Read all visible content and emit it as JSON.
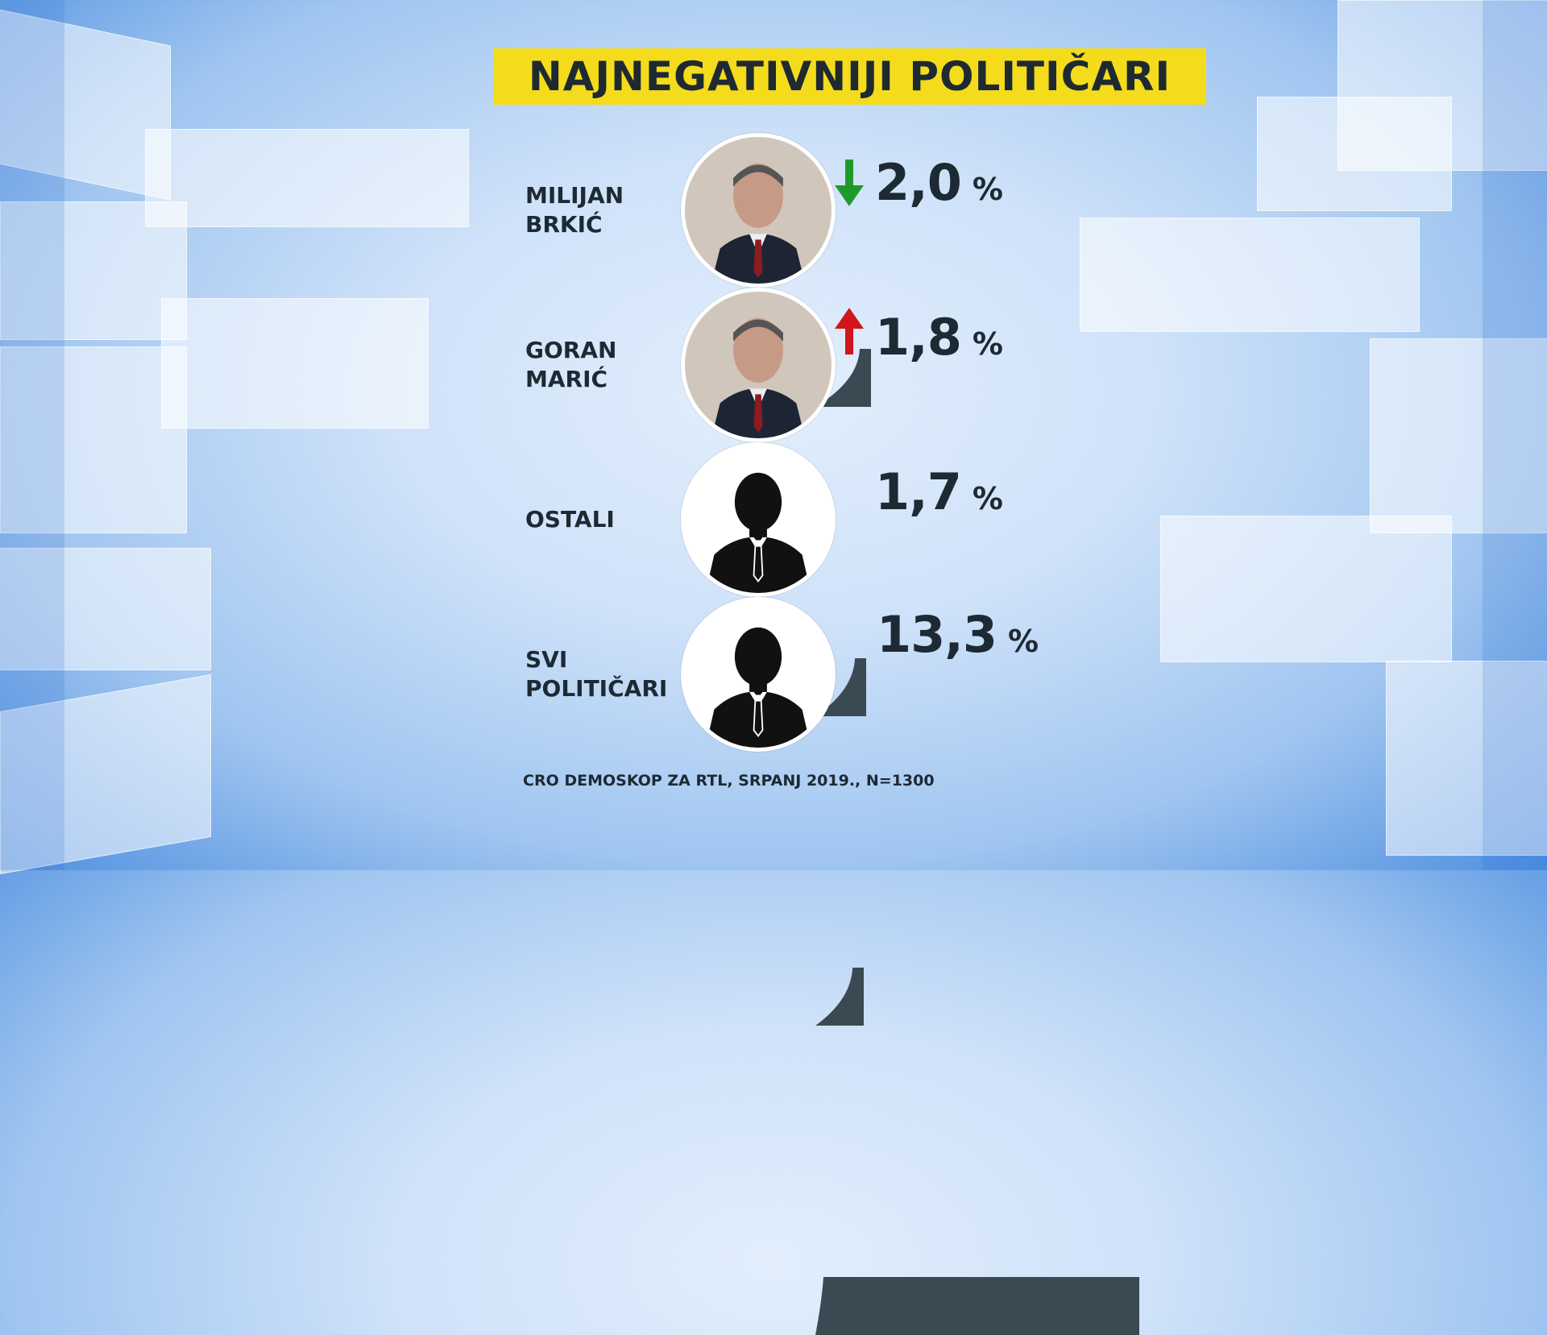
{
  "title": "NAJNEGATIVNIJI POLITIČARI",
  "footnote": "CRO DEMOSKOP ZA RTL, SRPANJ 2019., N=1300",
  "colors": {
    "title_bg": "#f4dc1c",
    "bar": "#3b4a52",
    "arrow_down": "#1f9a2a",
    "arrow_up": "#d0151b"
  },
  "chart_data": {
    "type": "bar",
    "categories": [
      "MILIJAN BRKIĆ",
      "GORAN MARIĆ",
      "OSTALI",
      "SVI POLITIČARI"
    ],
    "values": [
      2.0,
      1.8,
      1.7,
      13.3
    ],
    "unit": "%",
    "title": "NAJNEGATIVNIJI POLITIČARI",
    "rows": [
      {
        "name": "MILIJAN\nBRKIĆ",
        "value_label": "2,0",
        "pct": "%",
        "trend": "down",
        "avatar": "person-photo-icon"
      },
      {
        "name": "GORAN\nMARIĆ",
        "value_label": "1,8",
        "pct": "%",
        "trend": "up",
        "avatar": "person-photo-icon"
      },
      {
        "name": "OSTALI",
        "value_label": "1,7",
        "pct": "%",
        "trend": "none",
        "avatar": "person-silhouette-icon"
      },
      {
        "name": "SVI\nPOLITIČARI",
        "value_label": "13,3",
        "pct": "%",
        "trend": "none",
        "avatar": "person-silhouette-icon"
      }
    ]
  }
}
